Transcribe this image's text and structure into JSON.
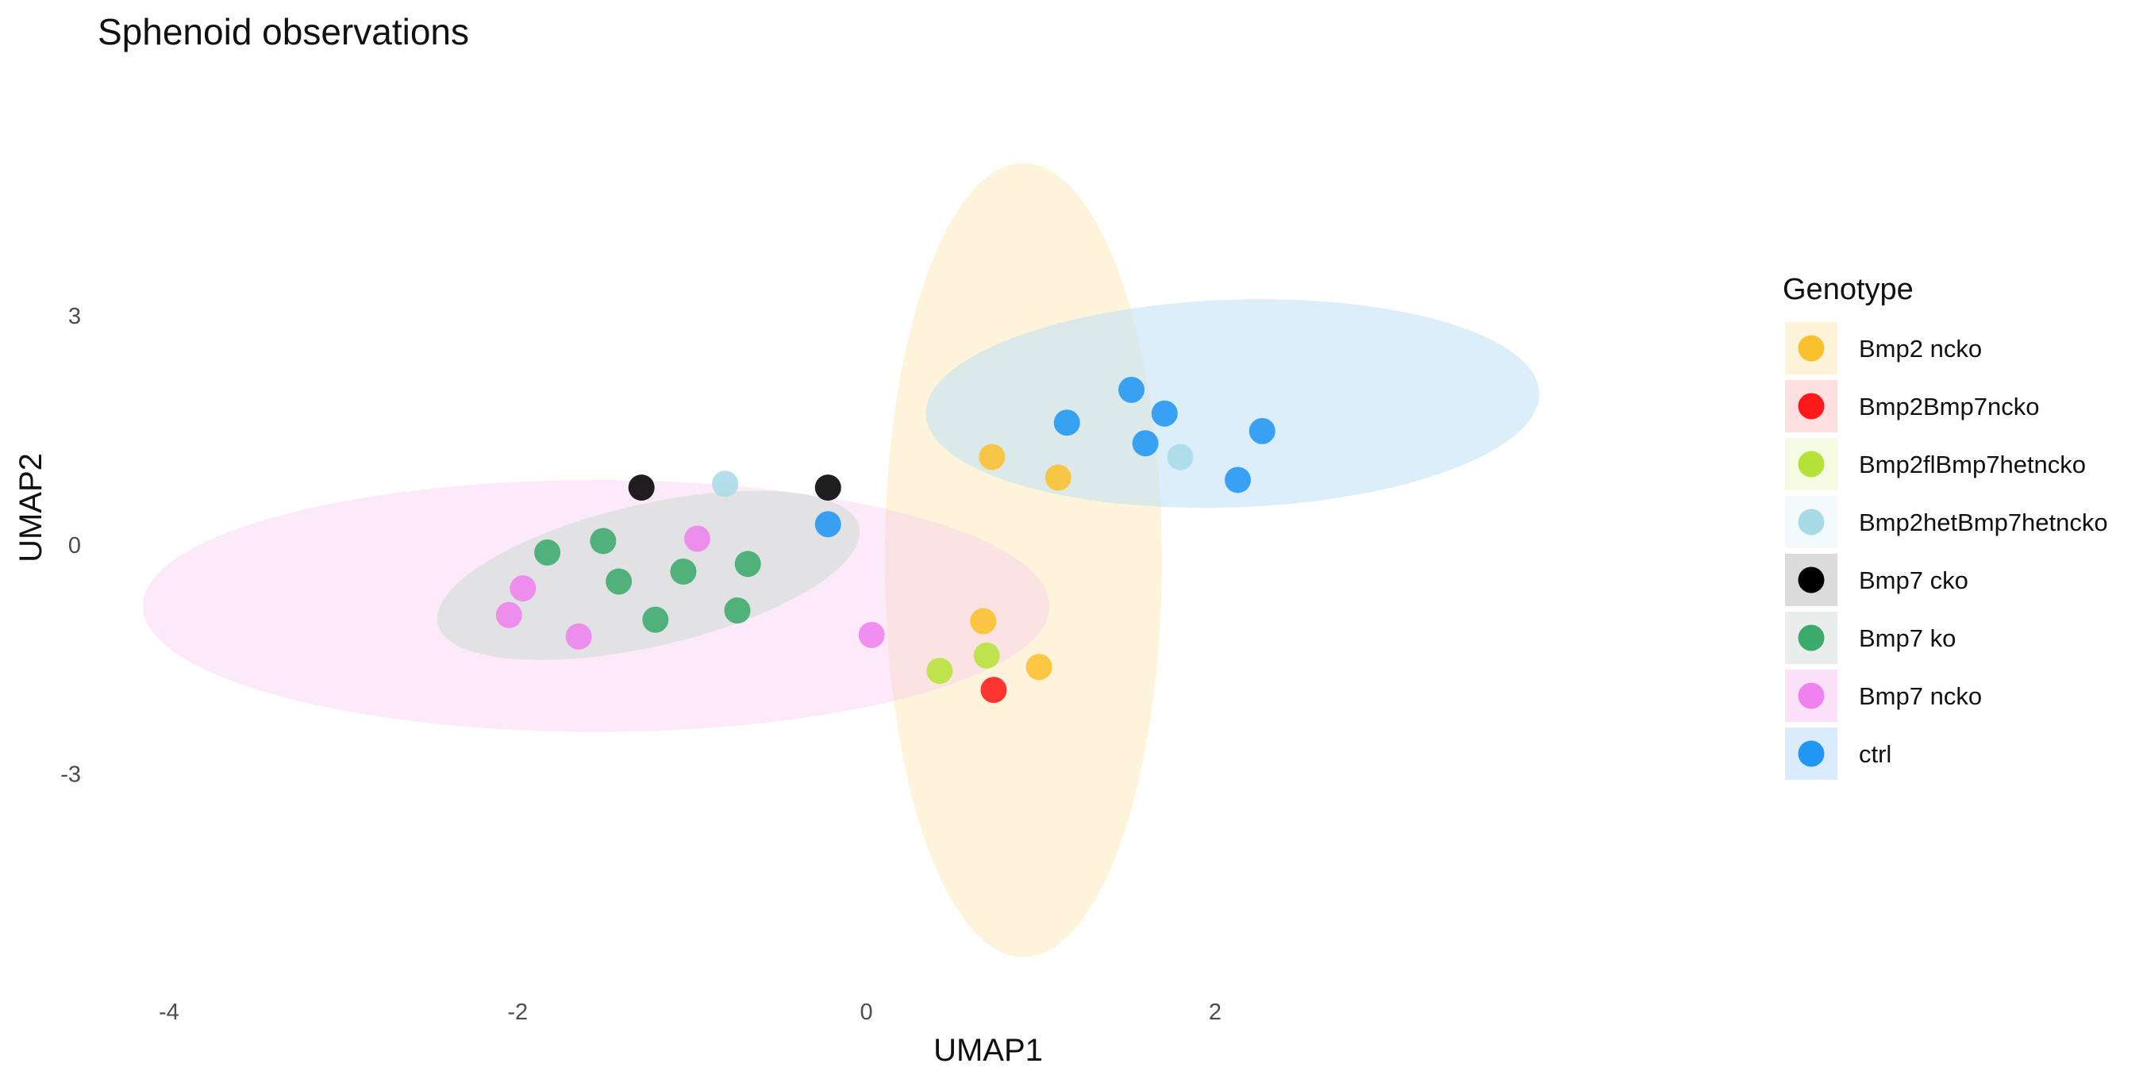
{
  "chart_data": {
    "type": "scatter",
    "title": "Sphenoid observations",
    "xlabel": "UMAP1",
    "ylabel": "UMAP2",
    "xlim": [
      -4.4,
      5.0
    ],
    "ylim": [
      -5.8,
      6.2
    ],
    "x_ticks": [
      -4,
      -2,
      0,
      2
    ],
    "y_ticks": [
      -3,
      0,
      3
    ],
    "grid": false,
    "legend": {
      "title": "Genotype",
      "position": "right"
    },
    "series": [
      {
        "name": "Bmp2 ncko",
        "color": "#FBC02D",
        "points": [
          [
            0.67,
            -1.0
          ],
          [
            0.99,
            -1.6
          ],
          [
            0.72,
            1.15
          ],
          [
            1.1,
            0.88
          ]
        ]
      },
      {
        "name": "Bmp2Bmp7ncko",
        "color": "#FF1A1A",
        "points": [
          [
            0.73,
            -1.9
          ]
        ]
      },
      {
        "name": "Bmp2flBmp7hetncko",
        "color": "#B5E238",
        "points": [
          [
            0.42,
            -1.65
          ],
          [
            0.69,
            -1.45
          ]
        ]
      },
      {
        "name": "Bmp2hetBmp7hetncko",
        "color": "#A8DBE6",
        "points": [
          [
            -0.81,
            0.8
          ],
          [
            1.8,
            1.15
          ]
        ]
      },
      {
        "name": "Bmp7 cko",
        "color": "#000000",
        "points": [
          [
            -1.29,
            0.75
          ],
          [
            -0.22,
            0.75
          ]
        ]
      },
      {
        "name": "Bmp7 ko",
        "color": "#3BAA6B",
        "points": [
          [
            -1.83,
            -0.1
          ],
          [
            -1.51,
            0.05
          ],
          [
            -1.42,
            -0.48
          ],
          [
            -1.21,
            -0.98
          ],
          [
            -1.05,
            -0.35
          ],
          [
            -0.74,
            -0.86
          ],
          [
            -0.68,
            -0.25
          ]
        ]
      },
      {
        "name": "Bmp7 ncko",
        "color": "#EE82EE",
        "points": [
          [
            -2.05,
            -0.92
          ],
          [
            -1.97,
            -0.57
          ],
          [
            -1.65,
            -1.2
          ],
          [
            -0.97,
            0.08
          ],
          [
            0.03,
            -1.18
          ]
        ]
      },
      {
        "name": "ctrl",
        "color": "#2196F3",
        "points": [
          [
            -0.22,
            0.27
          ],
          [
            1.15,
            1.6
          ],
          [
            1.52,
            2.03
          ],
          [
            1.6,
            1.33
          ],
          [
            1.71,
            1.72
          ],
          [
            2.13,
            0.85
          ],
          [
            2.27,
            1.49
          ]
        ]
      }
    ],
    "ellipses": [
      {
        "group": "Bmp2 ncko",
        "fill": "#FBE9B8",
        "opacity": 0.5,
        "cx": 0.9,
        "cy": -0.2,
        "rx": 0.795,
        "ry": 5.2,
        "angle_deg": 0
      },
      {
        "group": "Bmp7 ncko",
        "fill": "#F7CBF2",
        "opacity": 0.4,
        "cx": -1.55,
        "cy": -0.8,
        "rx": 2.6,
        "ry": 1.65,
        "angle_deg": 0
      },
      {
        "group": "Bmp7 ko",
        "fill": "#D9DEDB",
        "opacity": 0.75,
        "cx": -1.25,
        "cy": -0.4,
        "rx": 1.24,
        "ry": 0.93,
        "angle_deg": 13
      },
      {
        "group": "ctrl",
        "fill": "#BBDDF8",
        "opacity": 0.5,
        "cx": 2.1,
        "cy": 1.85,
        "rx": 1.76,
        "ry": 1.36,
        "angle_deg": 2
      }
    ]
  }
}
